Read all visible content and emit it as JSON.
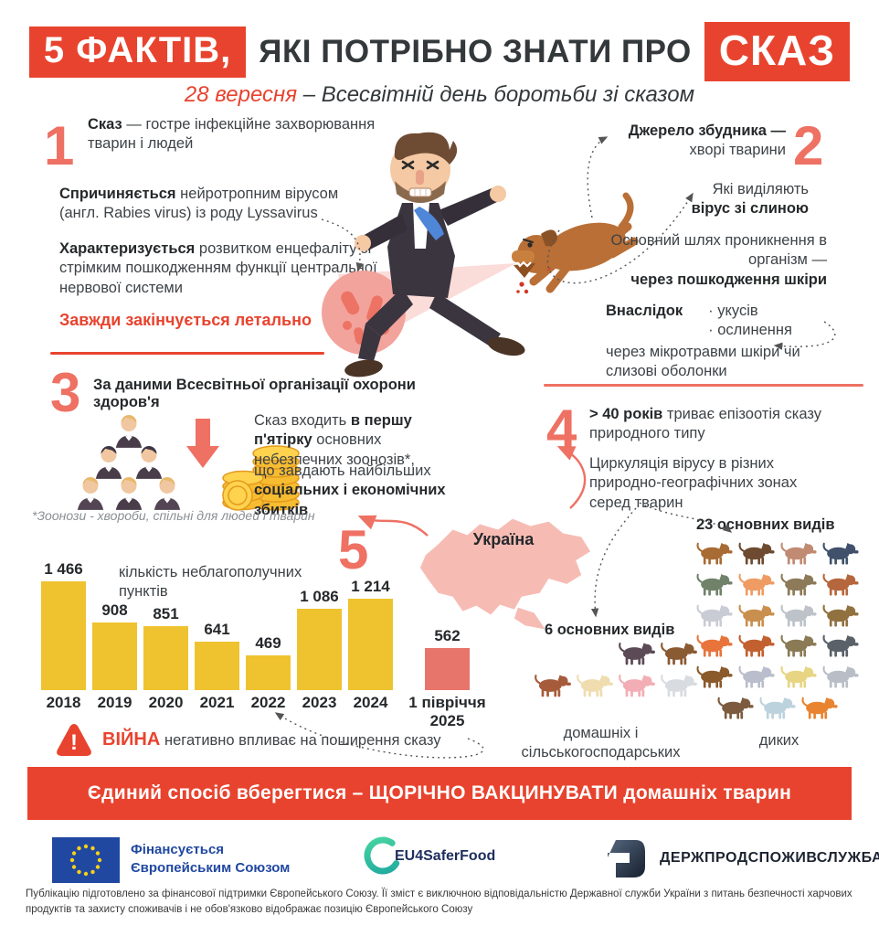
{
  "header": {
    "badge_left": "5 ФАКТІВ,",
    "title_middle": "ЯКІ ПОТРІБНО ЗНАТИ ПРО",
    "badge_right": "СКАЗ",
    "subtitle_date": "28 вересня",
    "subtitle_rest": "– Всесвітній день боротьби зі сказом"
  },
  "fact1": {
    "number": "1",
    "p1_bold": "Сказ",
    "p1_rest": "— гостре інфекційне захворювання тварин і людей",
    "p2_bold": "Спричиняється",
    "p2_rest": "нейротропним вірусом (англ. Rabies virus) із роду Lyssavirus",
    "p3_bold": "Характеризується",
    "p3_rest": "розвитком енцефаліту зі стрімким пошкодженням функції центральної нервової системи",
    "fatal": "Завжди закінчується летально"
  },
  "fact2": {
    "number": "2",
    "source_bold": "Джерело збудника —",
    "source_rest": "хворі тварини",
    "saliva_pre": "Які виділяють",
    "saliva_bold": "вірус зі слиною",
    "path_pre": "Основний шлях проникнення в організм —",
    "path_bold": "через пошкодження шкіри",
    "due_label": "Внаслідок",
    "due_items": [
      "укусів",
      "ослинення"
    ],
    "micro": "через мікротравми шкіри чи слизові оболонки"
  },
  "fact3": {
    "number": "3",
    "heading": "За даними Всесвітньої організації охорони здоров'я",
    "t1_pre": "Сказ входить",
    "t1_bold": "в першу п'ятірку",
    "t1_post": "основних небезпечних зоонозів*,",
    "t2_pre": "що завдають найбільших",
    "t2_bold": "соціальних і економічних збитків",
    "footnote": "*Зоонози - хвороби, спільні для людей і тварин"
  },
  "fact4": {
    "number": "4",
    "t1_bold": "> 40 років",
    "t1_rest": "триває епізоотія сказу природного типу",
    "t2": "Циркуляція вірусу в різних природно-географічних зонах серед тварин",
    "wild_count": "23 основних видів",
    "domestic_count": "6 основних видів",
    "domestic_label": "домашніх і сільськогосподарських",
    "wild_label": "диких"
  },
  "fact5": {
    "number": "5",
    "map_label": "Україна"
  },
  "chart_data": {
    "type": "bar",
    "title": "кількість неблагополучних пунктів",
    "categories": [
      "2018",
      "2019",
      "2020",
      "2021",
      "2022",
      "2023",
      "2024",
      "1 півріччя 2025"
    ],
    "values": [
      1466,
      908,
      851,
      641,
      469,
      1086,
      1214,
      562
    ],
    "labels": [
      "1 466",
      "908",
      "851",
      "641",
      "469",
      "1 086",
      "1 214",
      "562"
    ],
    "bar_colors": [
      "#efc32f",
      "#efc32f",
      "#efc32f",
      "#efc32f",
      "#efc32f",
      "#efc32f",
      "#efc32f",
      "#e8756b"
    ],
    "xlabel": "",
    "ylabel": "",
    "ylim": [
      0,
      1500
    ],
    "grid": false
  },
  "warning": {
    "bold": "ВІЙНА",
    "rest": "негативно впливає на поширення сказу"
  },
  "banner": {
    "text": "Єдиний спосіб вберегтися – ЩОРІЧНО ВАКЦИНУВАТИ домашніх тварин"
  },
  "footer": {
    "eu_line1": "Фінансується",
    "eu_line2": "Європейським Союзом",
    "eu4_label": "EU4SaferFood",
    "dpss_label": "ДЕРЖПРОДСПОЖИВСЛУЖБА",
    "disclaimer": "Публікацію підготовлено за фінансової підтримки Європейського Союзу. Її зміст є виключною відповідальністю Державної служби України з питань безпечності харчових продуктів та захисту споживачів і не обов'язково відображає позицію Європейського Союзу"
  },
  "animals": {
    "wild": [
      {
        "name": "moose",
        "color": "#a86b33"
      },
      {
        "name": "marmot",
        "color": "#6e4b30"
      },
      {
        "name": "roe-deer",
        "color": "#c08b72"
      },
      {
        "name": "rat",
        "color": "#41516b"
      },
      {
        "name": "otter",
        "color": "#70826a"
      },
      {
        "name": "weasel",
        "color": "#ee9c63"
      },
      {
        "name": "bear",
        "color": "#8c7a58"
      },
      {
        "name": "badger",
        "color": "#b5663c"
      },
      {
        "name": "hare",
        "color": "#c9ccd4"
      },
      {
        "name": "marten",
        "color": "#c98f4e"
      },
      {
        "name": "lynx",
        "color": "#bdc3c9"
      },
      {
        "name": "boar",
        "color": "#91713f"
      },
      {
        "name": "squirrel",
        "color": "#e8743b"
      },
      {
        "name": "deer",
        "color": "#c2602f"
      },
      {
        "name": "wolverine",
        "color": "#8a7a55"
      },
      {
        "name": "bat",
        "color": "#5a6168"
      },
      {
        "name": "beaver",
        "color": "#8b5a2b"
      },
      {
        "name": "raccoon",
        "color": "#b9bdcc"
      },
      {
        "name": "polecat",
        "color": "#e8d583"
      },
      {
        "name": "mouse",
        "color": "#b9bec6"
      },
      {
        "name": "hedgehog",
        "color": "#7d5b3e"
      },
      {
        "name": "wolf",
        "color": "#bcd3dd"
      },
      {
        "name": "fox",
        "color": "#e8842f"
      }
    ],
    "domestic": [
      {
        "name": "cat",
        "color": "#5c4a56"
      },
      {
        "name": "dog",
        "color": "#8a5a33"
      },
      {
        "name": "cow",
        "color": "#a65b3b"
      },
      {
        "name": "goat",
        "color": "#efddb0"
      },
      {
        "name": "pig",
        "color": "#f2aeb4"
      },
      {
        "name": "sheep",
        "color": "#d8dce0"
      }
    ]
  },
  "colors": {
    "accent_red": "#e8432e",
    "coral": "#ee7163",
    "bar_yellow": "#efc32f",
    "bar_red": "#e8756b",
    "map_pink": "#f6bcb4",
    "eu_blue": "#2148a1",
    "eu4_green": "#2bbfa4"
  }
}
